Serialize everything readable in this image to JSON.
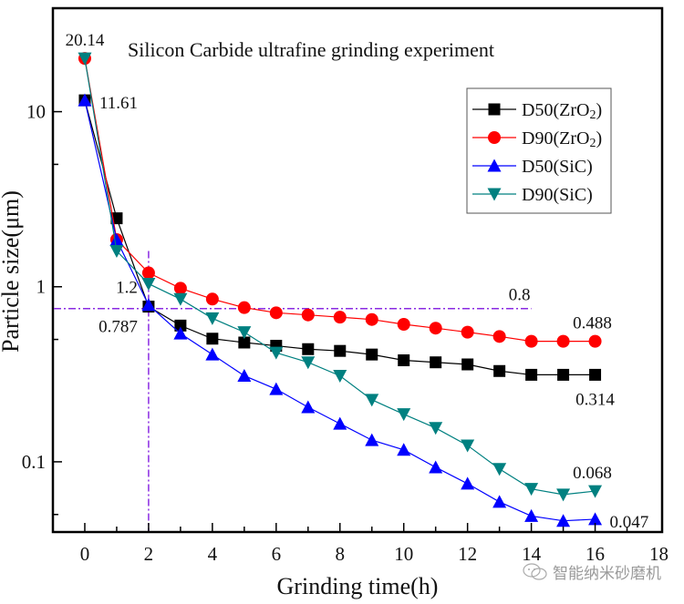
{
  "chart_data": {
    "type": "line",
    "title": "Silicon Carbide ultrafine grinding experiment",
    "xlabel": "Grinding time(h)",
    "ylabel": "Particle size(μm)",
    "xlim": [
      -1,
      18.1
    ],
    "ylim": [
      0.0397,
      39
    ],
    "yscale": "log",
    "xticks": [
      0,
      2,
      4,
      6,
      8,
      10,
      12,
      14,
      16,
      18
    ],
    "yticks": [
      0.1,
      1,
      10
    ],
    "ytick_labels": [
      "0.1",
      "1",
      "10"
    ],
    "grid": false,
    "legend_position": "top-right",
    "x": [
      0,
      1,
      2,
      3,
      4,
      5,
      6,
      7,
      8,
      9,
      10,
      11,
      12,
      13,
      14,
      15,
      16
    ],
    "series": [
      {
        "name": "D50(ZrO2)",
        "label_main": "D50(ZrO",
        "label_sub": "2",
        "label_tail": ")",
        "color": "#000000",
        "marker": "square",
        "values": [
          11.61,
          2.46,
          0.77,
          0.6,
          0.505,
          0.48,
          0.46,
          0.44,
          0.43,
          0.41,
          0.38,
          0.37,
          0.36,
          0.33,
          0.314,
          0.314,
          0.314
        ]
      },
      {
        "name": "D90(ZrO2)",
        "label_main": "D90(ZrO",
        "label_sub": "2",
        "label_tail": ")",
        "color": "#ff0000",
        "marker": "circle",
        "values": [
          20.14,
          1.86,
          1.2,
          0.98,
          0.85,
          0.76,
          0.71,
          0.69,
          0.67,
          0.65,
          0.61,
          0.58,
          0.55,
          0.52,
          0.488,
          0.488,
          0.488
        ]
      },
      {
        "name": "D50(SiC)",
        "label_main": "D50(SiC)",
        "label_sub": "",
        "label_tail": "",
        "color": "#0000ff",
        "marker": "triangle-up",
        "values": [
          11.61,
          1.85,
          0.787,
          0.54,
          0.41,
          0.31,
          0.26,
          0.205,
          0.165,
          0.133,
          0.117,
          0.093,
          0.075,
          0.059,
          0.049,
          0.046,
          0.047
        ]
      },
      {
        "name": "D90(SiC)",
        "label_main": "D90(SiC)",
        "label_sub": "",
        "label_tail": "",
        "color": "#008080",
        "marker": "triangle-down",
        "values": [
          20.14,
          1.6,
          1.04,
          0.85,
          0.66,
          0.55,
          0.42,
          0.37,
          0.31,
          0.226,
          0.187,
          0.156,
          0.124,
          0.091,
          0.07,
          0.065,
          0.068
        ]
      }
    ],
    "reference_lines": {
      "color": "#8a2be2",
      "horizontal": {
        "y": 0.75,
        "x_from": -1,
        "x_to": 14,
        "label": "0.8"
      },
      "vertical": {
        "x": 2,
        "y_from": 0.0397,
        "y_to": 1.6
      }
    },
    "annotations": [
      {
        "text": "20.14",
        "x": 0,
        "y": 20.14,
        "anchor": "above"
      },
      {
        "text": "11.61",
        "x": 0,
        "y": 11.61,
        "anchor": "right"
      },
      {
        "text": "1.2",
        "x": 2,
        "y": 1.2,
        "anchor": "left-below"
      },
      {
        "text": "0.787",
        "x": 2,
        "y": 0.787,
        "anchor": "left-below"
      },
      {
        "text": "0.488",
        "x": 16,
        "y": 0.488,
        "anchor": "above"
      },
      {
        "text": "0.314",
        "x": 16,
        "y": 0.314,
        "anchor": "below"
      },
      {
        "text": "0.068",
        "x": 16,
        "y": 0.068,
        "anchor": "above"
      },
      {
        "text": "0.047",
        "x": 16,
        "y": 0.047,
        "anchor": "right"
      }
    ]
  },
  "watermark": {
    "text": "智能纳米砂磨机",
    "icon": "wechat-icon"
  }
}
